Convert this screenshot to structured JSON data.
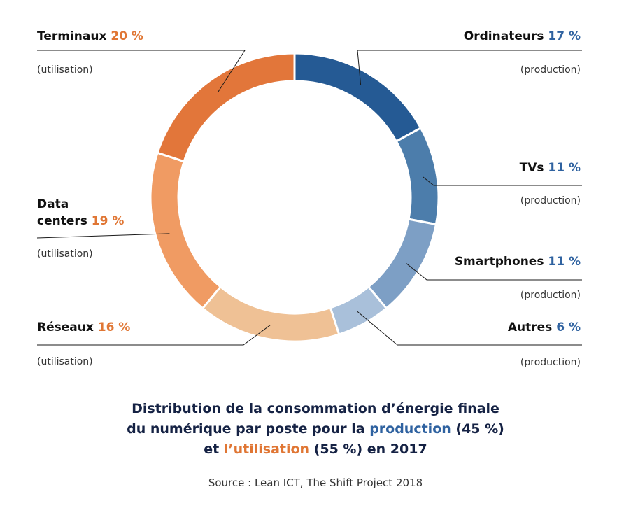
{
  "chart_data": {
    "type": "pie",
    "variant": "donut",
    "slices": [
      {
        "key": "ordinateurs",
        "name": "Ordinateurs",
        "pct_label": "17 %",
        "value": 17,
        "phase": "(production)",
        "color": "#255a94"
      },
      {
        "key": "tvs",
        "name": "TVs",
        "pct_label": "11 %",
        "value": 11,
        "phase": "(production)",
        "color": "#4c7dab"
      },
      {
        "key": "smartphones",
        "name": "Smartphones",
        "pct_label": "11 %",
        "value": 11,
        "phase": "(production)",
        "color": "#7d9fc5"
      },
      {
        "key": "autres",
        "name": "Autres",
        "pct_label": "6 %",
        "value": 6,
        "phase": "(production)",
        "color": "#a9c0da"
      },
      {
        "key": "reseaux",
        "name": "Réseaux",
        "pct_label": "16 %",
        "value": 16,
        "phase": "(utilisation)",
        "color": "#efc195"
      },
      {
        "key": "datacenters",
        "name": "Data centers",
        "name_line1": "Data",
        "name_line2": "centers",
        "pct_label": "19 %",
        "value": 19,
        "phase": "(utilisation)",
        "color": "#f09b63"
      },
      {
        "key": "terminaux",
        "name": "Terminaux",
        "pct_label": "20 %",
        "value": 20,
        "phase": "(utilisation)",
        "color": "#e2763a"
      }
    ]
  },
  "title": {
    "line1": "Distribution de la consommation d’énergie finale",
    "line2_pre": "du numérique par poste pour la ",
    "line2_highlight": "production",
    "line2_post": " (45 %)",
    "line3_pre": "et ",
    "line3_highlight": "l’utilisation",
    "line3_post": " (55 %) en 2017"
  },
  "source": "Source : Lean ICT, The Shift Project 2018"
}
